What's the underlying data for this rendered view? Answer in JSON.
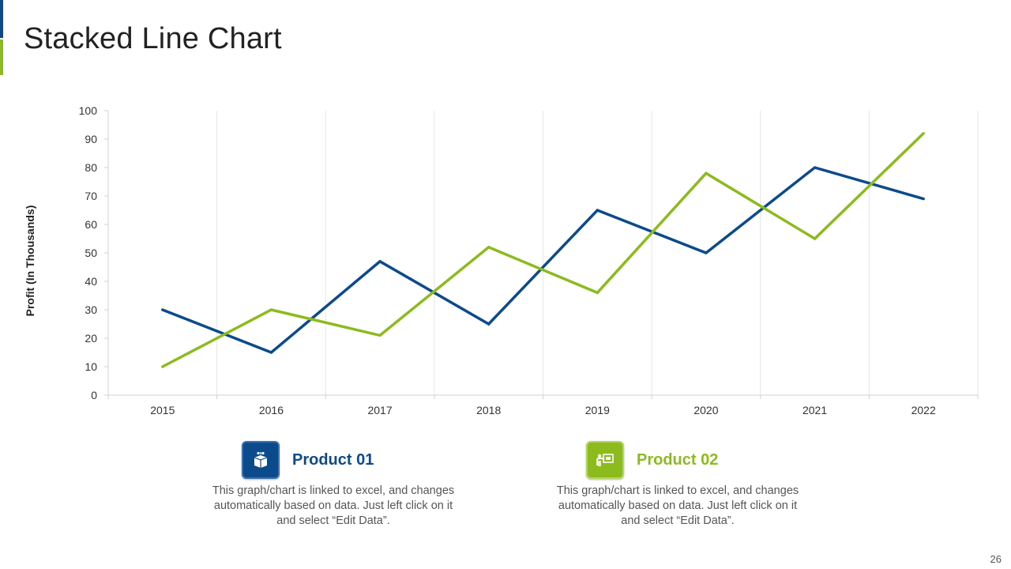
{
  "slide": {
    "title": "Stacked Line Chart",
    "page_number": "26"
  },
  "colors": {
    "product1": "#0b4a8b",
    "product2": "#8cbb1d",
    "grid": "#e6e6e6",
    "axis": "#d0d0d0"
  },
  "chart_data": {
    "type": "line",
    "title": "",
    "xlabel": "",
    "ylabel": "Profit (In Thousands)",
    "categories": [
      "2015",
      "2016",
      "2017",
      "2018",
      "2019",
      "2020",
      "2021",
      "2022"
    ],
    "ylim": [
      0,
      100
    ],
    "yticks": [
      0,
      10,
      20,
      30,
      40,
      50,
      60,
      70,
      80,
      90,
      100
    ],
    "grid": "vertical",
    "series": [
      {
        "name": "Product 01",
        "color": "#0b4a8b",
        "values": [
          30,
          15,
          47,
          25,
          65,
          50,
          80,
          69
        ]
      },
      {
        "name": "Product 02",
        "color": "#8cbb1d",
        "values": [
          10,
          30,
          21,
          52,
          36,
          78,
          55,
          92
        ]
      }
    ]
  },
  "legend": [
    {
      "name": "Product 01",
      "icon": "box-icon",
      "description": "This graph/chart is linked to excel, and changes automatically based on data. Just left click on it and select “Edit Data”."
    },
    {
      "name": "Product 02",
      "icon": "presentation-icon",
      "description": "This graph/chart is linked to excel, and changes automatically based on data. Just left click on it and select “Edit Data”."
    }
  ]
}
